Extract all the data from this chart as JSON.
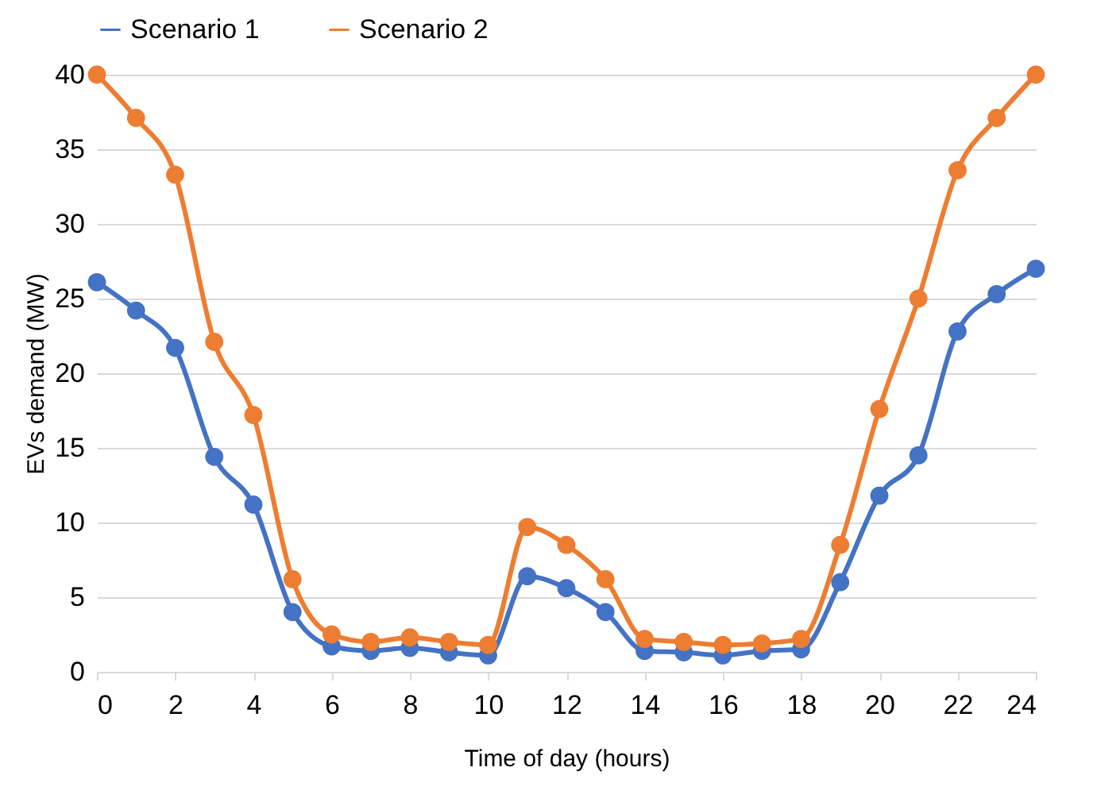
{
  "chart_data": {
    "type": "line",
    "xlabel": "Time of day (hours)",
    "ylabel": "EVs demand (MW)",
    "x": [
      0,
      1,
      2,
      3,
      4,
      5,
      6,
      7,
      8,
      9,
      10,
      11,
      12,
      13,
      14,
      15,
      16,
      17,
      18,
      19,
      20,
      21,
      22,
      23,
      24
    ],
    "series": [
      {
        "name": "Scenario 1",
        "color": "#4472c4",
        "values": [
          26.1,
          24.2,
          21.7,
          14.4,
          11.2,
          4.0,
          1.7,
          1.4,
          1.6,
          1.3,
          1.1,
          6.4,
          5.6,
          4.0,
          1.4,
          1.3,
          1.1,
          1.4,
          1.5,
          6.0,
          11.8,
          14.5,
          22.8,
          25.3,
          27.0
        ]
      },
      {
        "name": "Scenario 2",
        "color": "#ed7d31",
        "values": [
          40.0,
          37.1,
          33.3,
          22.1,
          17.2,
          6.2,
          2.5,
          2.0,
          2.3,
          2.0,
          1.8,
          9.7,
          8.5,
          6.2,
          2.2,
          2.0,
          1.8,
          1.9,
          2.2,
          8.5,
          17.6,
          25.0,
          33.6,
          37.1,
          40.0
        ]
      }
    ],
    "xlim": [
      0,
      24
    ],
    "xticks": [
      0,
      2,
      4,
      6,
      8,
      10,
      12,
      14,
      16,
      18,
      20,
      22,
      24
    ],
    "ylim": [
      0,
      40
    ],
    "yticks": [
      0,
      5,
      10,
      15,
      20,
      25,
      30,
      35,
      40
    ],
    "grid": "y",
    "legend": "top",
    "marker": "circle",
    "line_style": "solid"
  }
}
